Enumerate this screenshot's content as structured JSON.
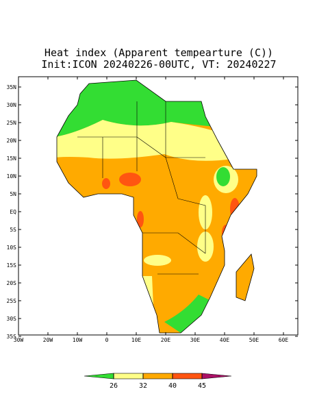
{
  "map": {
    "title": "Heat index (Apparent tempearture (C))",
    "subtitle": "Init:ICON 20240226-00UTC, VT: 20240227",
    "lat_ticks": [
      {
        "value": 35,
        "label": "35N"
      },
      {
        "value": 30,
        "label": "30N"
      },
      {
        "value": 25,
        "label": "25N"
      },
      {
        "value": 20,
        "label": "20N"
      },
      {
        "value": 15,
        "label": "15N"
      },
      {
        "value": 10,
        "label": "10N"
      },
      {
        "value": 5,
        "label": "5N"
      },
      {
        "value": 0,
        "label": "EQ"
      },
      {
        "value": -5,
        "label": "5S"
      },
      {
        "value": -10,
        "label": "10S"
      },
      {
        "value": -15,
        "label": "15S"
      },
      {
        "value": -20,
        "label": "20S"
      },
      {
        "value": -25,
        "label": "25S"
      },
      {
        "value": -30,
        "label": "30S"
      },
      {
        "value": -35,
        "label": "35S"
      }
    ],
    "lon_ticks": [
      {
        "value": -30,
        "label": "30W"
      },
      {
        "value": -20,
        "label": "20W"
      },
      {
        "value": -10,
        "label": "10W"
      },
      {
        "value": 0,
        "label": "0"
      },
      {
        "value": 10,
        "label": "10E"
      },
      {
        "value": 20,
        "label": "20E"
      },
      {
        "value": 30,
        "label": "30E"
      },
      {
        "value": 40,
        "label": "40E"
      },
      {
        "value": 50,
        "label": "50E"
      },
      {
        "value": 60,
        "label": "60E"
      }
    ],
    "colorbar": {
      "ticks": [
        26,
        32,
        40,
        45
      ],
      "colors": [
        "#33dd33",
        "#ffff88",
        "#ffaa00",
        "#ff5511",
        "#aa1166"
      ]
    }
  }
}
